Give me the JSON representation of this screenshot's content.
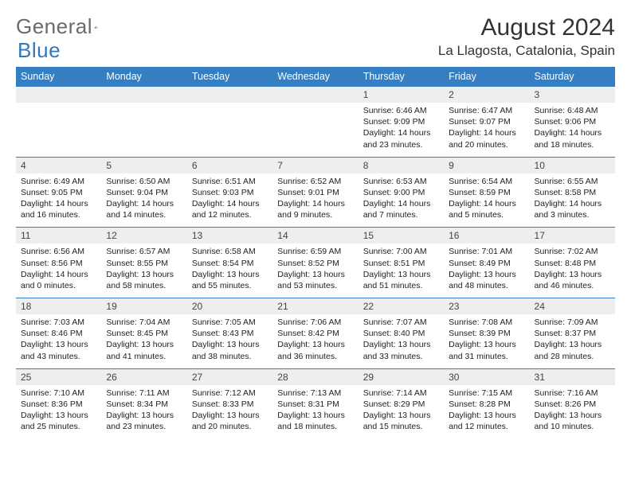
{
  "logo": {
    "text1": "General",
    "text2": "Blue"
  },
  "title": "August 2024",
  "location": "La Llagosta, Catalonia, Spain",
  "colors": {
    "header_bg": "#347ec1",
    "header_text": "#ffffff",
    "row_num_bg": "#eeeeee",
    "row_border": "#347ec1",
    "logo_gray": "#6a6a6a",
    "logo_blue": "#2f78bd"
  },
  "day_headers": [
    "Sunday",
    "Monday",
    "Tuesday",
    "Wednesday",
    "Thursday",
    "Friday",
    "Saturday"
  ],
  "weeks": [
    [
      null,
      null,
      null,
      null,
      {
        "n": "1",
        "sr": "Sunrise: 6:46 AM",
        "ss": "Sunset: 9:09 PM",
        "d1": "Daylight: 14 hours",
        "d2": "and 23 minutes."
      },
      {
        "n": "2",
        "sr": "Sunrise: 6:47 AM",
        "ss": "Sunset: 9:07 PM",
        "d1": "Daylight: 14 hours",
        "d2": "and 20 minutes."
      },
      {
        "n": "3",
        "sr": "Sunrise: 6:48 AM",
        "ss": "Sunset: 9:06 PM",
        "d1": "Daylight: 14 hours",
        "d2": "and 18 minutes."
      }
    ],
    [
      {
        "n": "4",
        "sr": "Sunrise: 6:49 AM",
        "ss": "Sunset: 9:05 PM",
        "d1": "Daylight: 14 hours",
        "d2": "and 16 minutes."
      },
      {
        "n": "5",
        "sr": "Sunrise: 6:50 AM",
        "ss": "Sunset: 9:04 PM",
        "d1": "Daylight: 14 hours",
        "d2": "and 14 minutes."
      },
      {
        "n": "6",
        "sr": "Sunrise: 6:51 AM",
        "ss": "Sunset: 9:03 PM",
        "d1": "Daylight: 14 hours",
        "d2": "and 12 minutes."
      },
      {
        "n": "7",
        "sr": "Sunrise: 6:52 AM",
        "ss": "Sunset: 9:01 PM",
        "d1": "Daylight: 14 hours",
        "d2": "and 9 minutes."
      },
      {
        "n": "8",
        "sr": "Sunrise: 6:53 AM",
        "ss": "Sunset: 9:00 PM",
        "d1": "Daylight: 14 hours",
        "d2": "and 7 minutes."
      },
      {
        "n": "9",
        "sr": "Sunrise: 6:54 AM",
        "ss": "Sunset: 8:59 PM",
        "d1": "Daylight: 14 hours",
        "d2": "and 5 minutes."
      },
      {
        "n": "10",
        "sr": "Sunrise: 6:55 AM",
        "ss": "Sunset: 8:58 PM",
        "d1": "Daylight: 14 hours",
        "d2": "and 3 minutes."
      }
    ],
    [
      {
        "n": "11",
        "sr": "Sunrise: 6:56 AM",
        "ss": "Sunset: 8:56 PM",
        "d1": "Daylight: 14 hours",
        "d2": "and 0 minutes."
      },
      {
        "n": "12",
        "sr": "Sunrise: 6:57 AM",
        "ss": "Sunset: 8:55 PM",
        "d1": "Daylight: 13 hours",
        "d2": "and 58 minutes."
      },
      {
        "n": "13",
        "sr": "Sunrise: 6:58 AM",
        "ss": "Sunset: 8:54 PM",
        "d1": "Daylight: 13 hours",
        "d2": "and 55 minutes."
      },
      {
        "n": "14",
        "sr": "Sunrise: 6:59 AM",
        "ss": "Sunset: 8:52 PM",
        "d1": "Daylight: 13 hours",
        "d2": "and 53 minutes."
      },
      {
        "n": "15",
        "sr": "Sunrise: 7:00 AM",
        "ss": "Sunset: 8:51 PM",
        "d1": "Daylight: 13 hours",
        "d2": "and 51 minutes."
      },
      {
        "n": "16",
        "sr": "Sunrise: 7:01 AM",
        "ss": "Sunset: 8:49 PM",
        "d1": "Daylight: 13 hours",
        "d2": "and 48 minutes."
      },
      {
        "n": "17",
        "sr": "Sunrise: 7:02 AM",
        "ss": "Sunset: 8:48 PM",
        "d1": "Daylight: 13 hours",
        "d2": "and 46 minutes."
      }
    ],
    [
      {
        "n": "18",
        "sr": "Sunrise: 7:03 AM",
        "ss": "Sunset: 8:46 PM",
        "d1": "Daylight: 13 hours",
        "d2": "and 43 minutes."
      },
      {
        "n": "19",
        "sr": "Sunrise: 7:04 AM",
        "ss": "Sunset: 8:45 PM",
        "d1": "Daylight: 13 hours",
        "d2": "and 41 minutes."
      },
      {
        "n": "20",
        "sr": "Sunrise: 7:05 AM",
        "ss": "Sunset: 8:43 PM",
        "d1": "Daylight: 13 hours",
        "d2": "and 38 minutes."
      },
      {
        "n": "21",
        "sr": "Sunrise: 7:06 AM",
        "ss": "Sunset: 8:42 PM",
        "d1": "Daylight: 13 hours",
        "d2": "and 36 minutes."
      },
      {
        "n": "22",
        "sr": "Sunrise: 7:07 AM",
        "ss": "Sunset: 8:40 PM",
        "d1": "Daylight: 13 hours",
        "d2": "and 33 minutes."
      },
      {
        "n": "23",
        "sr": "Sunrise: 7:08 AM",
        "ss": "Sunset: 8:39 PM",
        "d1": "Daylight: 13 hours",
        "d2": "and 31 minutes."
      },
      {
        "n": "24",
        "sr": "Sunrise: 7:09 AM",
        "ss": "Sunset: 8:37 PM",
        "d1": "Daylight: 13 hours",
        "d2": "and 28 minutes."
      }
    ],
    [
      {
        "n": "25",
        "sr": "Sunrise: 7:10 AM",
        "ss": "Sunset: 8:36 PM",
        "d1": "Daylight: 13 hours",
        "d2": "and 25 minutes."
      },
      {
        "n": "26",
        "sr": "Sunrise: 7:11 AM",
        "ss": "Sunset: 8:34 PM",
        "d1": "Daylight: 13 hours",
        "d2": "and 23 minutes."
      },
      {
        "n": "27",
        "sr": "Sunrise: 7:12 AM",
        "ss": "Sunset: 8:33 PM",
        "d1": "Daylight: 13 hours",
        "d2": "and 20 minutes."
      },
      {
        "n": "28",
        "sr": "Sunrise: 7:13 AM",
        "ss": "Sunset: 8:31 PM",
        "d1": "Daylight: 13 hours",
        "d2": "and 18 minutes."
      },
      {
        "n": "29",
        "sr": "Sunrise: 7:14 AM",
        "ss": "Sunset: 8:29 PM",
        "d1": "Daylight: 13 hours",
        "d2": "and 15 minutes."
      },
      {
        "n": "30",
        "sr": "Sunrise: 7:15 AM",
        "ss": "Sunset: 8:28 PM",
        "d1": "Daylight: 13 hours",
        "d2": "and 12 minutes."
      },
      {
        "n": "31",
        "sr": "Sunrise: 7:16 AM",
        "ss": "Sunset: 8:26 PM",
        "d1": "Daylight: 13 hours",
        "d2": "and 10 minutes."
      }
    ]
  ]
}
